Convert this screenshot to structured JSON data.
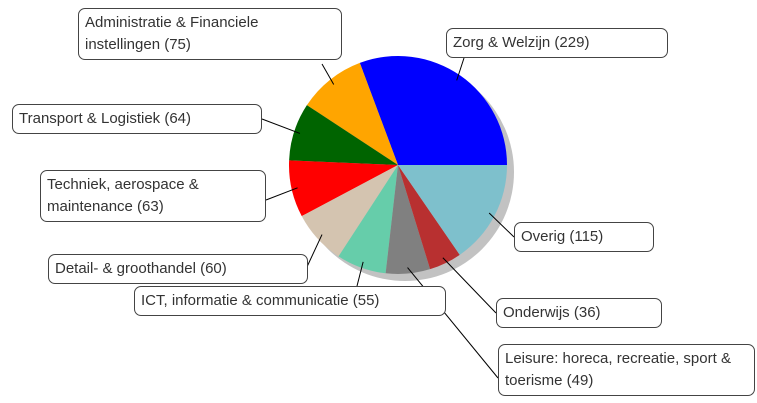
{
  "chart_data": {
    "type": "pie",
    "categories": [
      "Zorg & Welzijn (229)",
      "Administratie & Financiele instellingen (75)",
      "Transport & Logistiek (64)",
      "Techniek, aerospace & maintenance (63)",
      "Detail- & groothandel (60)",
      "ICT, informatie & communicatie (55)",
      "Leisure: horeca, recreatie, sport & toerisme (49)",
      "Onderwijs (36)",
      "Overig (115)"
    ],
    "values": [
      229,
      75,
      64,
      63,
      60,
      55,
      49,
      36,
      115
    ],
    "colors": [
      "#0000ff",
      "#ffa500",
      "#006400",
      "#ff0000",
      "#d4c4b0",
      "#66cdaa",
      "#808080",
      "#b83030",
      "#7ec0cc"
    ]
  }
}
